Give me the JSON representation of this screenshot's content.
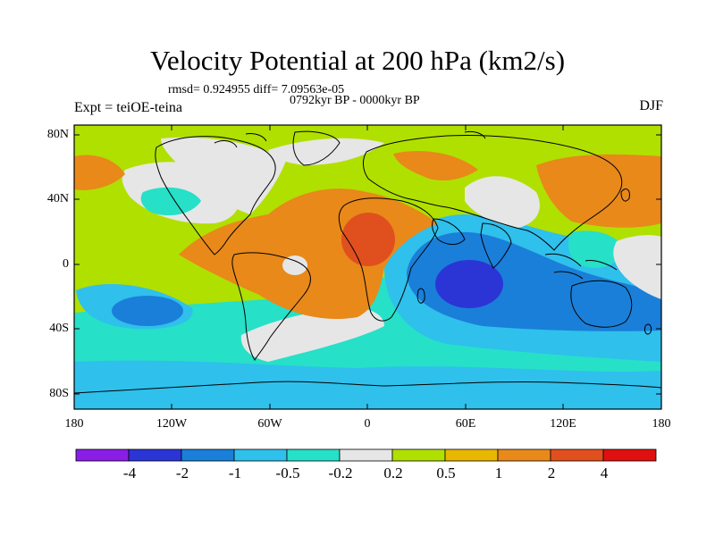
{
  "title": "Velocity Potential at 200 hPa (km2/s)",
  "stats": "rmsd= 0.924955  diff= 7.09563e-05",
  "experiment": "Expt = teiOE-teina",
  "period": "0792kyr BP - 0000kyr BP",
  "season": "DJF",
  "lat_ticks": [
    "80N",
    "40N",
    "0",
    "40S",
    "80S"
  ],
  "lon_ticks": [
    "180",
    "120W",
    "60W",
    "0",
    "60E",
    "120E",
    "180"
  ],
  "colorbar": {
    "labels": [
      "-4",
      "-2",
      "-1",
      "-0.5",
      "-0.2",
      "0.2",
      "0.5",
      "1",
      "2",
      "4"
    ],
    "colors": [
      "#8a1ee6",
      "#2b35d6",
      "#1a7fd9",
      "#2fc0ec",
      "#26e0c8",
      "#e6e6e6",
      "#b0e000",
      "#e8b800",
      "#e8891a",
      "#e0501e",
      "#e01010"
    ]
  }
}
